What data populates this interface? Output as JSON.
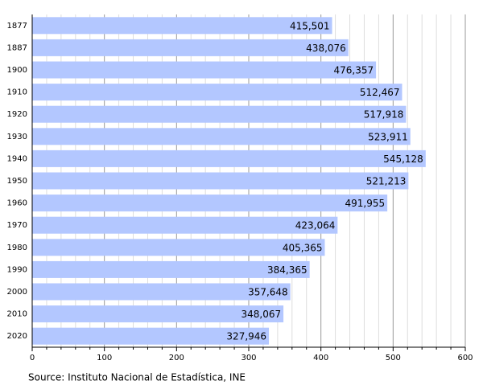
{
  "chart_data": {
    "type": "bar",
    "orientation": "horizontal",
    "categories": [
      "1877",
      "1887",
      "1900",
      "1910",
      "1920",
      "1930",
      "1940",
      "1950",
      "1960",
      "1970",
      "1980",
      "1990",
      "2000",
      "2010",
      "2020"
    ],
    "values": [
      415.501,
      438.076,
      476.357,
      512.467,
      517.918,
      523.911,
      545.128,
      521.213,
      491.955,
      423.064,
      405.365,
      384.365,
      357.648,
      348.067,
      327.946
    ],
    "value_labels": [
      "415,501",
      "438,076",
      "476,357",
      "512,467",
      "517,918",
      "523,911",
      "545,128",
      "521,213",
      "491,955",
      "423,064",
      "405,365",
      "384,365",
      "357,648",
      "348,067",
      "327,946"
    ],
    "color": "#b3c7ff",
    "xlim": [
      0,
      600
    ],
    "xticks": [
      0,
      100,
      200,
      300,
      400,
      500,
      600
    ],
    "xticks_minor": [
      20,
      40,
      60,
      80,
      120,
      140,
      160,
      180,
      220,
      240,
      260,
      280,
      320,
      340,
      360,
      380,
      420,
      440,
      460,
      480,
      520,
      540,
      560,
      580
    ],
    "grid": true,
    "source": "Source: Instituto Nacional de Estadística, INE"
  }
}
